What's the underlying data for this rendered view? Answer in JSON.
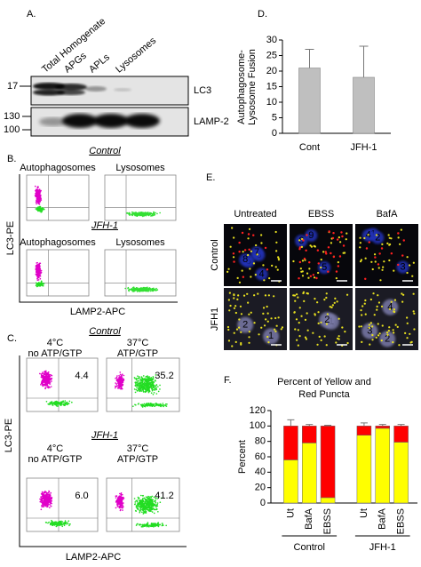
{
  "panel_a": {
    "label": "A.",
    "lanes": [
      "Total Homogenate",
      "APGs",
      "APLs",
      "Lysosomes"
    ],
    "proteins": [
      "LC3",
      "LAMP-2"
    ],
    "markers_top": [
      "17"
    ],
    "markers_bottom": [
      "130",
      "100"
    ]
  },
  "panel_b": {
    "label": "B.",
    "groups": [
      "Control",
      "JFH-1"
    ],
    "columns": [
      "Autophagosomes",
      "Lysosomes"
    ],
    "y_axis": "LC3-PE",
    "x_axis": "LAMP2-APC"
  },
  "panel_c": {
    "label": "C.",
    "groups": [
      "Control",
      "JFH-1"
    ],
    "conditions": [
      [
        "4°C",
        "no ATP/GTP"
      ],
      [
        "37°C",
        "ATP/GTP"
      ]
    ],
    "percentages": [
      [
        "4.4",
        "35.2"
      ],
      [
        "6.0",
        "41.2"
      ]
    ],
    "y_axis": "LC3-PE",
    "x_axis": "LAMP2-APC"
  },
  "panel_e": {
    "label": "E.",
    "columns": [
      "Untreated",
      "EBSS",
      "BafA"
    ],
    "rows": [
      "Control",
      "JFH1"
    ],
    "cell_labels": [
      [
        [
          "4",
          "5",
          "6",
          "7",
          "8"
        ],
        [
          "5",
          "6",
          "9"
        ],
        [
          "1",
          "2",
          "3",
          "4"
        ]
      ],
      [
        [
          "1",
          "2"
        ],
        [
          "1",
          "2"
        ],
        [
          "2",
          "3",
          "4"
        ]
      ]
    ]
  },
  "chart_data": [
    {
      "type": "bar",
      "panel_label": "D.",
      "ylabel": [
        "Autophagosome-",
        "Lysosome Fusion"
      ],
      "categories": [
        "Cont",
        "JFH-1"
      ],
      "values": [
        21,
        18
      ],
      "errors": [
        6,
        10
      ],
      "color": "#bfbfbf",
      "ylim": [
        0,
        30
      ],
      "yticks": [
        0,
        5,
        10,
        15,
        20,
        25,
        30
      ]
    },
    {
      "type": "stacked_bar",
      "panel_label": "F.",
      "title": [
        "Percent of Yellow and",
        "Red Puncta"
      ],
      "ylabel": "Percent",
      "categories": [
        "Ut",
        "BafA",
        "EBSS",
        "Ut",
        "BafA",
        "EBSS"
      ],
      "groups": [
        "Control",
        "JFH-1"
      ],
      "series": [
        {
          "color": "#ffff00",
          "values": [
            56,
            78,
            7,
            88,
            97,
            79
          ]
        },
        {
          "color": "#ff0000",
          "values": [
            44,
            22,
            93,
            12,
            3,
            21
          ],
          "errors": [
            8,
            2,
            1,
            4,
            2,
            2
          ]
        }
      ],
      "ylim": [
        0,
        120
      ],
      "yticks": [
        0,
        20,
        40,
        60,
        80,
        100,
        120
      ]
    }
  ]
}
